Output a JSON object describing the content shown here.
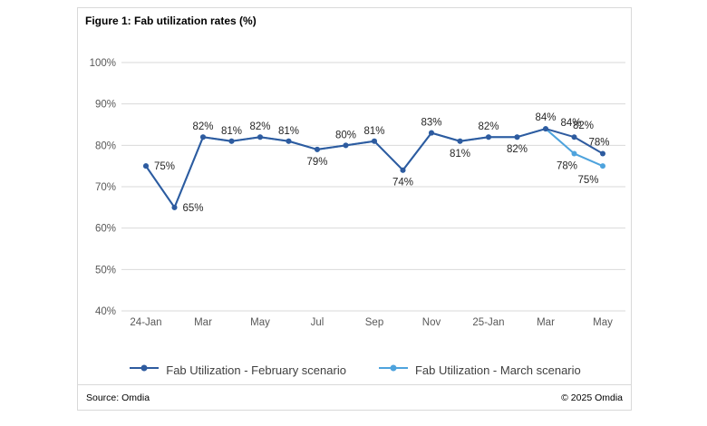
{
  "figure": {
    "title": "Figure 1: Fab utilization rates (%)",
    "source": "Source: Omdia",
    "copyright": "© 2025 Omdia"
  },
  "chart_data": {
    "type": "line",
    "title": "Fab utilization rates (%)",
    "xlabel": "",
    "ylabel": "",
    "ylim": [
      40,
      100
    ],
    "grid": true,
    "legend_position": "bottom",
    "y_axis": {
      "min": 40,
      "max": 100,
      "step": 10,
      "tick_suffix": "%"
    },
    "y_tick_labels": [
      "100%",
      "90%",
      "80%",
      "70%",
      "60%",
      "50%",
      "40%"
    ],
    "x_tick_labels": [
      "24-Jan",
      "Mar",
      "May",
      "Jul",
      "Sep",
      "Nov",
      "25-Jan",
      "Mar",
      "May"
    ],
    "x_tick_indices": [
      0,
      2,
      4,
      6,
      8,
      10,
      12,
      14,
      16
    ],
    "months": [
      "24-Jan",
      "24-Feb",
      "24-Mar",
      "24-Apr",
      "24-May",
      "24-Jun",
      "24-Jul",
      "24-Aug",
      "24-Sep",
      "24-Oct",
      "24-Nov",
      "24-Dec",
      "25-Jan",
      "25-Feb",
      "25-Mar",
      "25-Apr",
      "25-May"
    ],
    "series": [
      {
        "name": "Fab Utilization - February scenario",
        "color": "#2e5b9f",
        "values": [
          75,
          65,
          82,
          81,
          82,
          81,
          79,
          80,
          81,
          74,
          83,
          81,
          82,
          82,
          84,
          82,
          78
        ],
        "labels": [
          "75%",
          "65%",
          "82%",
          "81%",
          "82%",
          "81%",
          "79%",
          "80%",
          "81%",
          "74%",
          "83%",
          "81%",
          "82%",
          "82%",
          "84%",
          "82%",
          "78%"
        ],
        "label_offsets": [
          [
            9,
            4,
            "start"
          ],
          [
            9,
            4,
            "start"
          ],
          [
            0,
            -8
          ],
          [
            0,
            -8
          ],
          [
            0,
            -8
          ],
          [
            0,
            -8
          ],
          [
            0,
            17
          ],
          [
            0,
            -8
          ],
          [
            0,
            -8
          ],
          [
            0,
            17
          ],
          [
            0,
            -8
          ],
          [
            0,
            17
          ],
          [
            0,
            -8
          ],
          [
            0,
            17
          ],
          [
            0,
            -9
          ],
          [
            10,
            -9
          ],
          [
            -4,
            -9
          ]
        ]
      },
      {
        "name": "Fab Utilization - March scenario",
        "color": "#4ea3dd",
        "values": [
          75,
          65,
          82,
          81,
          82,
          81,
          79,
          80,
          81,
          74,
          83,
          81,
          82,
          82,
          84,
          78,
          75
        ],
        "labels": [
          null,
          null,
          null,
          null,
          null,
          null,
          null,
          null,
          null,
          null,
          null,
          null,
          null,
          null,
          "84%",
          "78%",
          "75%"
        ],
        "label_offsets": [
          null,
          null,
          null,
          null,
          null,
          null,
          null,
          null,
          null,
          null,
          null,
          null,
          null,
          null,
          [
            28,
            -3
          ],
          [
            -8,
            17
          ],
          [
            -16,
            19
          ]
        ]
      }
    ]
  }
}
